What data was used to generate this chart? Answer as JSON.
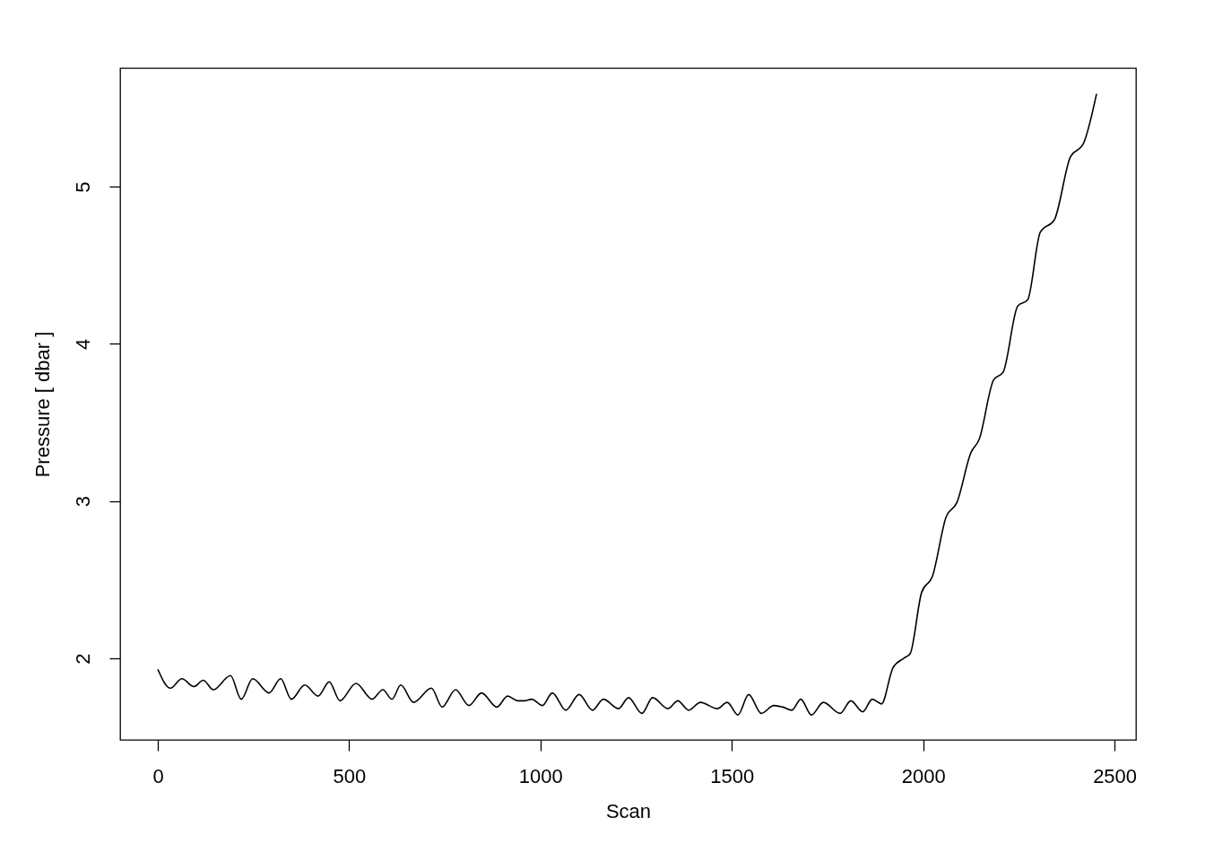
{
  "chart_data": {
    "type": "line",
    "xlabel": "Scan",
    "ylabel": "Pressure [ dbar ]",
    "color": "#000000",
    "x": [
      0,
      33,
      63,
      94,
      119,
      145,
      190,
      218,
      248,
      291,
      321,
      349,
      384,
      419,
      448,
      476,
      518,
      560,
      588,
      612,
      635,
      668,
      715,
      743,
      778,
      813,
      846,
      886,
      914,
      940,
      958,
      977,
      1005,
      1031,
      1066,
      1101,
      1136,
      1164,
      1204,
      1230,
      1265,
      1293,
      1333,
      1359,
      1387,
      1418,
      1462,
      1488,
      1516,
      1544,
      1577,
      1610,
      1633,
      1657,
      1680,
      1708,
      1739,
      1783,
      1811,
      1842,
      1867,
      1891,
      1921,
      1949,
      1966,
      1996,
      2024,
      2060,
      2088,
      2125,
      2146,
      2184,
      2209,
      2247,
      2273,
      2306,
      2343,
      2385,
      2418,
      2453
    ],
    "values": [
      1.93,
      1.81,
      1.87,
      1.82,
      1.86,
      1.8,
      1.89,
      1.74,
      1.87,
      1.78,
      1.87,
      1.74,
      1.83,
      1.76,
      1.85,
      1.73,
      1.84,
      1.74,
      1.8,
      1.74,
      1.83,
      1.72,
      1.81,
      1.69,
      1.8,
      1.7,
      1.78,
      1.69,
      1.76,
      1.73,
      1.73,
      1.74,
      1.7,
      1.78,
      1.67,
      1.77,
      1.67,
      1.74,
      1.68,
      1.75,
      1.65,
      1.75,
      1.68,
      1.73,
      1.67,
      1.72,
      1.68,
      1.72,
      1.64,
      1.77,
      1.65,
      1.7,
      1.69,
      1.67,
      1.74,
      1.64,
      1.72,
      1.65,
      1.73,
      1.66,
      1.74,
      1.71,
      1.94,
      2.0,
      2.03,
      2.42,
      2.52,
      2.9,
      2.99,
      3.31,
      3.39,
      3.77,
      3.82,
      4.24,
      4.28,
      4.71,
      4.79,
      5.19,
      5.27,
      5.59
    ],
    "xlim": [
      -98.4,
      2556
    ],
    "ylim": [
      1.481,
      5.753
    ],
    "xticks": [
      0,
      500,
      1000,
      1500,
      2000,
      2500
    ],
    "yticks": [
      2,
      3,
      4,
      5
    ]
  }
}
